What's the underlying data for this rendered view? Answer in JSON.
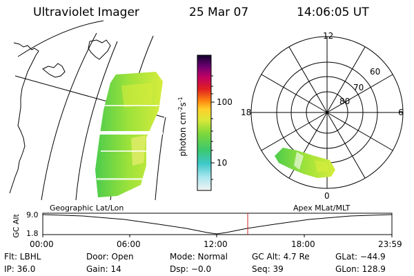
{
  "header": {
    "instrument": "Ultraviolet Imager",
    "date": "25 Mar 07",
    "time": "14:06:05 UT"
  },
  "colorbar": {
    "label": "photon cm",
    "label_sup1": "-2",
    "label_mid": "s",
    "label_sup2": "-1",
    "ticks": [
      "100",
      "10"
    ]
  },
  "polar": {
    "mlt_labels": {
      "top": "12",
      "right": "6",
      "bottom": "0",
      "left": "18"
    },
    "lat_labels": [
      "60",
      "70",
      "80"
    ]
  },
  "timeline": {
    "left_title": "Geographic Lat/Lon",
    "right_title": "Apex MLat/MLT",
    "ylabel": "GC Alt",
    "ytick_top": "9.0",
    "ytick_bottom": "1.8",
    "xticks": [
      "00:00",
      "06:00",
      "12:00",
      "18:00",
      "23:59"
    ],
    "marker_color": "#cc2222"
  },
  "status": {
    "filter": "Flt: LBHL",
    "door": "Door: Open",
    "mode": "Mode: Normal",
    "gc_alt": "GC Alt: 4.7 Re",
    "glat": "GLat: −44.9",
    "ip": "IP: 36.0",
    "gain": "Gain: 14",
    "dsp": "Dsp:   −0.0",
    "seq": "Seq: 39",
    "glon": "GLon: 128.9"
  }
}
